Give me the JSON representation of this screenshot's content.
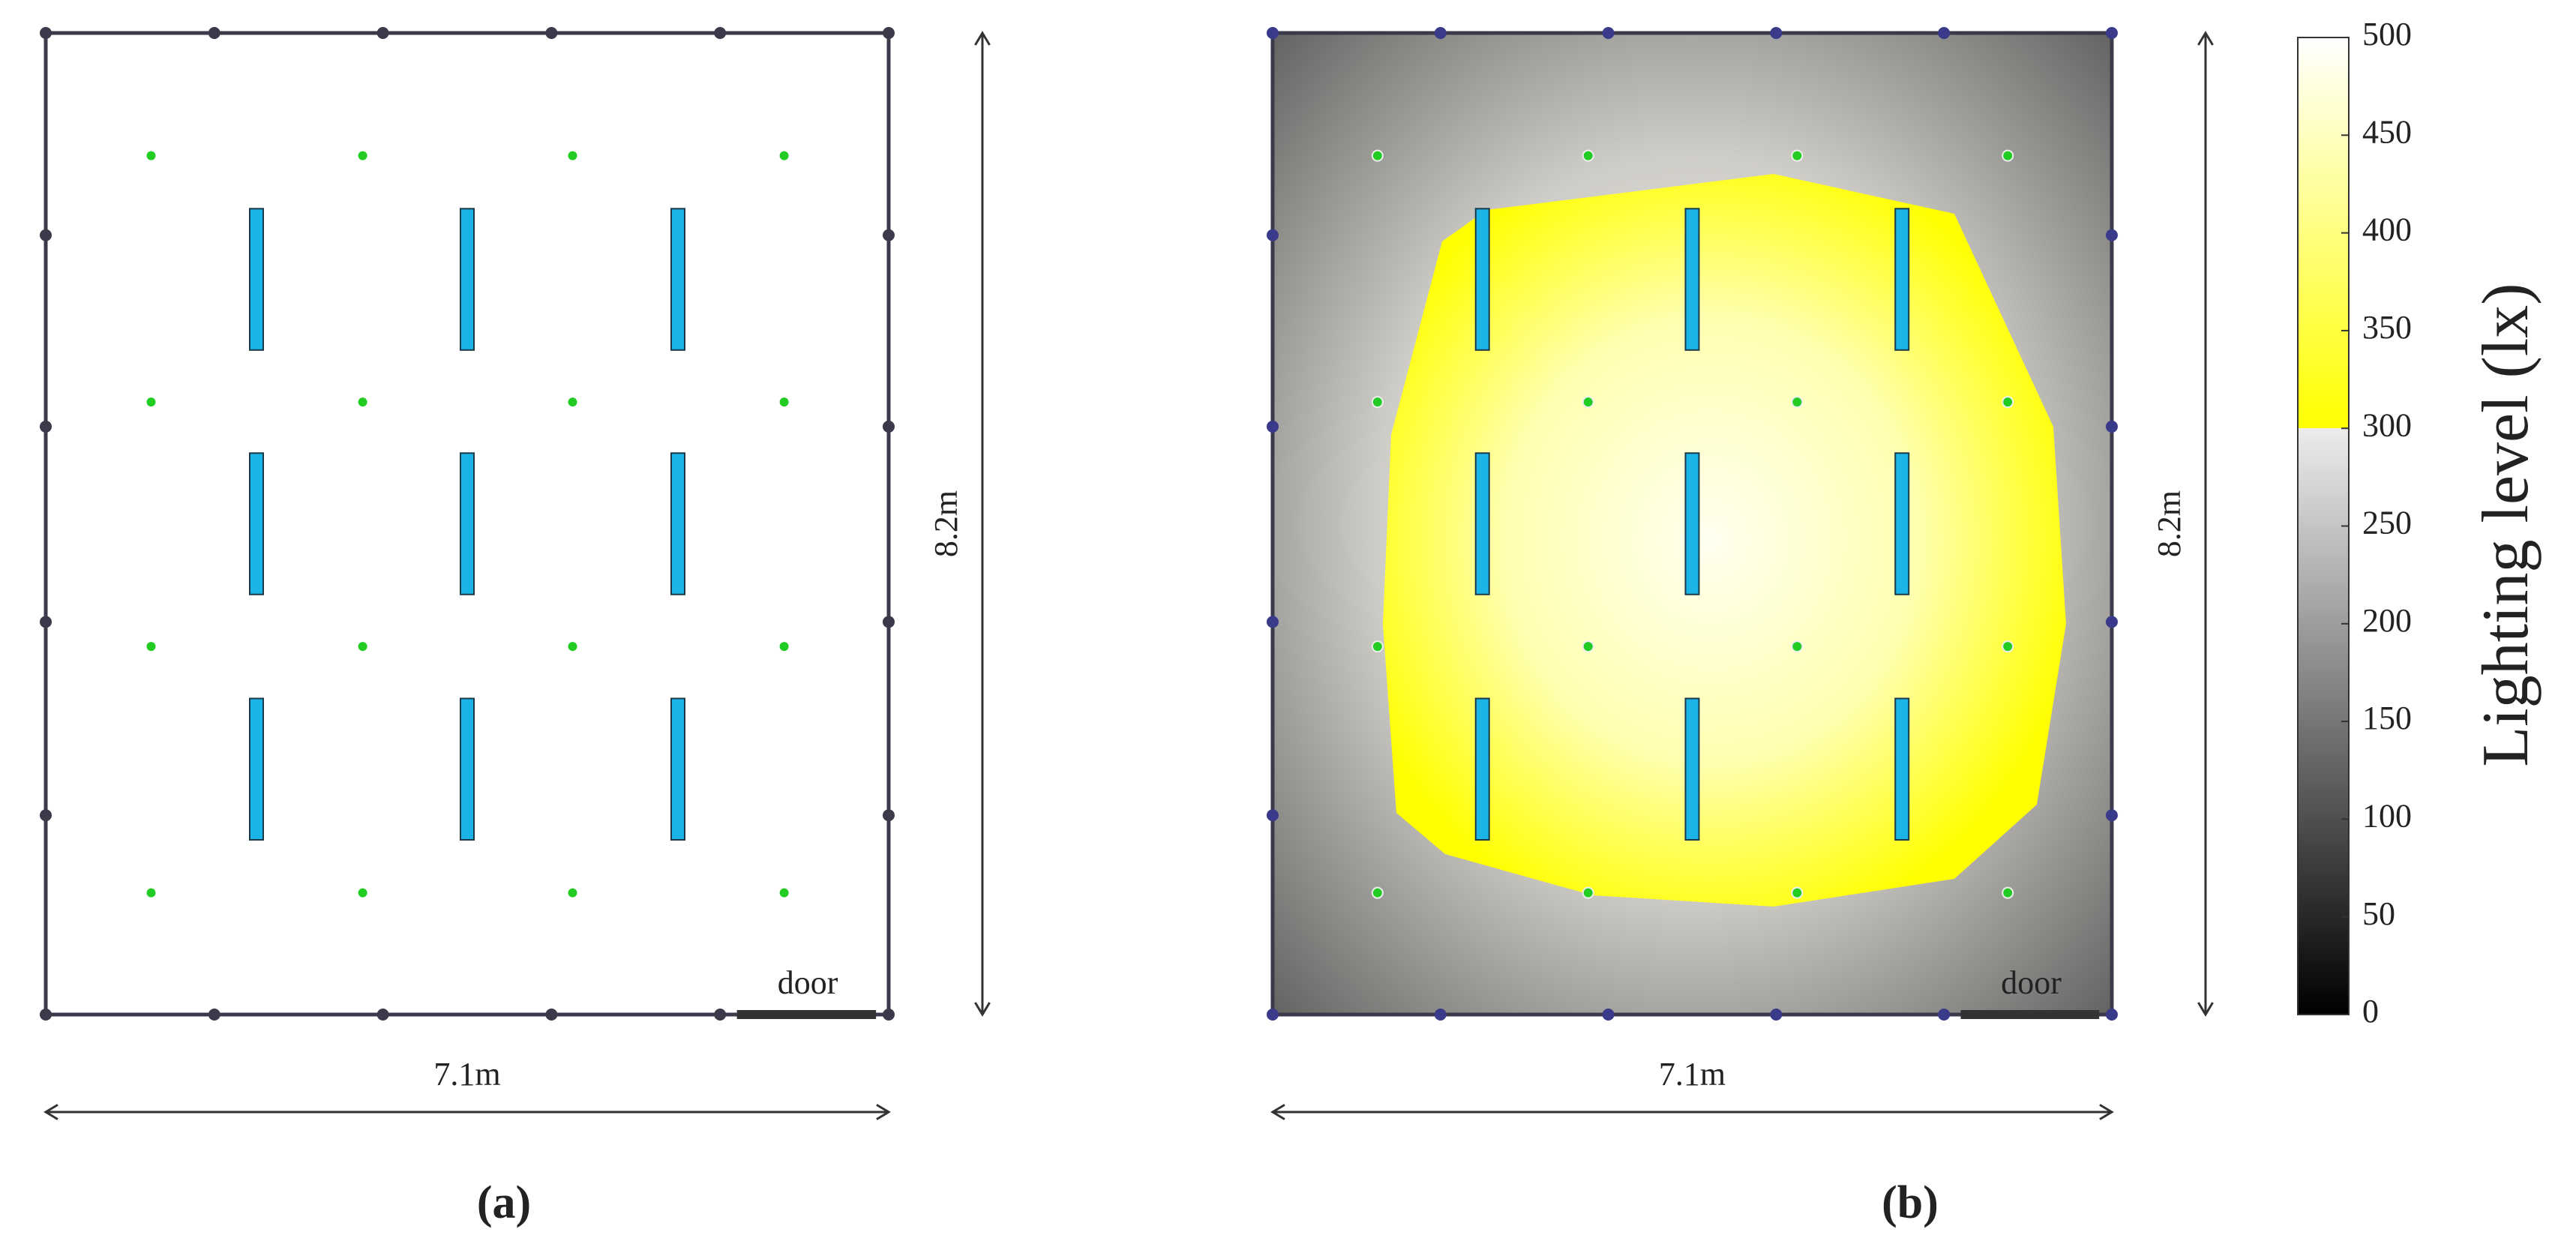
{
  "panels": [
    {
      "label": "(a)",
      "width_label": "7.1m",
      "height_label": "8.2m",
      "door_label": "door"
    },
    {
      "label": "(b)",
      "width_label": "7.1m",
      "height_label": "8.2m",
      "door_label": "door"
    }
  ],
  "colorbar": {
    "title": "Lighting level (lx)",
    "lim": [
      0,
      500
    ],
    "ticks": [
      0,
      50,
      100,
      150,
      200,
      250,
      300,
      350,
      400,
      450,
      500
    ],
    "stops": [
      {
        "value": 0,
        "color": "#000000"
      },
      {
        "value": 300,
        "color": "#ececec"
      },
      {
        "value": 300,
        "color": "#ffff00"
      },
      {
        "value": 500,
        "color": "#ffffff"
      }
    ]
  }
}
